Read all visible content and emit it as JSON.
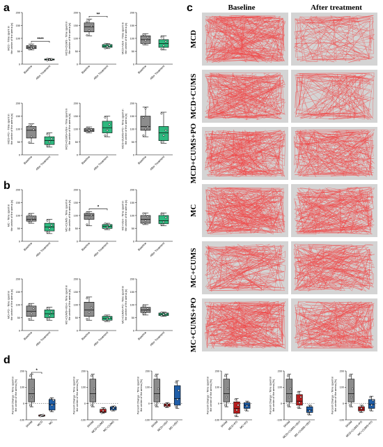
{
  "panel_letters": {
    "a": "a",
    "b": "b",
    "c": "c",
    "d": "d"
  },
  "tick_font_note": "",
  "colors": {
    "gray": "#8c8c8c",
    "green": "#2eb87f",
    "red": "#b81e1e",
    "blue": "#1f5ea8",
    "track_bg": "#d4d4d4",
    "track_line": "#f04646"
  },
  "tracking": {
    "column_headers": [
      "Baseline",
      "After treatment"
    ],
    "row_labels": [
      "MCD",
      "MCD+CUMS",
      "MCD+CUMS+PO",
      "MC",
      "MC+CUMS",
      "MC+CUMS+PO"
    ],
    "density": [
      [
        1.0,
        0.35
      ],
      [
        0.9,
        0.45
      ],
      [
        1.0,
        0.9
      ],
      [
        1.0,
        0.9
      ],
      [
        0.6,
        0.8
      ],
      [
        1.0,
        0.8
      ]
    ]
  },
  "chart_data": [
    {
      "type": "box",
      "panel": "a",
      "ylabel": "MCD - Time spent in\nthe center of the arena (s)",
      "categories": [
        "Baseline",
        "After Treatment"
      ],
      "ylim": [
        0,
        200
      ],
      "yticks": [
        0,
        50,
        100,
        150,
        200
      ],
      "boxes": [
        {
          "min": 55,
          "q1": 60,
          "median": 65,
          "q3": 72,
          "max": 78,
          "points": [
            58,
            62,
            66,
            70,
            76
          ],
          "color": "gray"
        },
        {
          "min": 14,
          "q1": 16,
          "median": 18,
          "q3": 20,
          "max": 22,
          "points": [
            15,
            17,
            19,
            21
          ],
          "color": "green"
        }
      ],
      "significance": "****"
    },
    {
      "type": "box",
      "panel": "a",
      "ylabel": "MCD+CUMS - Time spent in\nthe center of the arena (s)",
      "categories": [
        "Baseline",
        "After Treatment"
      ],
      "ylim": [
        0,
        200
      ],
      "yticks": [
        0,
        50,
        100,
        150,
        200
      ],
      "boxes": [
        {
          "min": 110,
          "q1": 125,
          "median": 145,
          "q3": 160,
          "max": 175,
          "points": [
            112,
            130,
            148,
            165,
            172
          ],
          "color": "gray"
        },
        {
          "min": 60,
          "q1": 65,
          "median": 70,
          "q3": 76,
          "max": 80,
          "points": [
            62,
            68,
            72,
            78
          ],
          "color": "green"
        }
      ],
      "significance": "**"
    },
    {
      "type": "box",
      "panel": "a",
      "ylabel": "MCD+VEH - Time spent in\nthe center of the arena (s)",
      "categories": [
        "Baseline",
        "After Treatment"
      ],
      "ylim": [
        0,
        200
      ],
      "yticks": [
        0,
        50,
        100,
        150,
        200
      ],
      "boxes": [
        {
          "min": 75,
          "q1": 80,
          "median": 95,
          "q3": 110,
          "max": 118,
          "points": [
            78,
            92,
            105,
            115
          ],
          "color": "gray"
        },
        {
          "min": 55,
          "q1": 65,
          "median": 80,
          "q3": 95,
          "max": 110,
          "points": [
            58,
            72,
            88,
            105
          ],
          "color": "green"
        }
      ],
      "significance": ""
    },
    {
      "type": "box",
      "panel": "a",
      "ylabel": "MCD+PO - Time spent in\nthe center of the arena (s)",
      "categories": [
        "Baseline",
        "After Treatment"
      ],
      "ylim": [
        0,
        200
      ],
      "yticks": [
        0,
        50,
        100,
        150,
        200
      ],
      "boxes": [
        {
          "min": 45,
          "q1": 65,
          "median": 95,
          "q3": 110,
          "max": 120,
          "points": [
            48,
            70,
            98,
            112,
            118
          ],
          "color": "gray"
        },
        {
          "min": 30,
          "q1": 40,
          "median": 55,
          "q3": 70,
          "max": 85,
          "points": [
            35,
            50,
            62,
            80
          ],
          "color": "green"
        }
      ],
      "significance": ""
    },
    {
      "type": "box",
      "panel": "a",
      "ylabel": "MCD+CUMS+VEH - Time spent in\nthe center of the arena (s)",
      "categories": [
        "Baseline",
        "After Treatment"
      ],
      "ylim": [
        0,
        200
      ],
      "yticks": [
        0,
        50,
        100,
        150,
        200
      ],
      "boxes": [
        {
          "min": 85,
          "q1": 90,
          "median": 95,
          "q3": 102,
          "max": 108,
          "points": [
            88,
            94,
            98,
            104
          ],
          "color": "gray"
        },
        {
          "min": 70,
          "q1": 85,
          "median": 105,
          "q3": 130,
          "max": 150,
          "points": [
            75,
            95,
            118,
            145
          ],
          "color": "green"
        }
      ],
      "significance": ""
    },
    {
      "type": "box",
      "panel": "a",
      "ylabel": "MCD+CUMS+PO - Time spent in\nthe center of the arena (s)",
      "categories": [
        "Baseline",
        "After Treatment"
      ],
      "ylim": [
        0,
        200
      ],
      "yticks": [
        0,
        50,
        100,
        150,
        200
      ],
      "boxes": [
        {
          "min": 70,
          "q1": 95,
          "median": 110,
          "q3": 150,
          "max": 185,
          "points": [
            75,
            100,
            108,
            145,
            180
          ],
          "color": "gray"
        },
        {
          "min": 45,
          "q1": 55,
          "median": 85,
          "q3": 110,
          "max": 165,
          "points": [
            50,
            75,
            95,
            160
          ],
          "color": "green"
        }
      ],
      "significance": ""
    },
    {
      "type": "box",
      "panel": "b",
      "ylabel": "MC - Time spent in\nthe center of the arena (s)",
      "categories": [
        "Baseline",
        "After Treatment"
      ],
      "ylim": [
        0,
        200
      ],
      "yticks": [
        0,
        50,
        100,
        150,
        200
      ],
      "boxes": [
        {
          "min": 70,
          "q1": 78,
          "median": 85,
          "q3": 98,
          "max": 108,
          "points": [
            74,
            82,
            90,
            104
          ],
          "color": "gray"
        },
        {
          "min": 30,
          "q1": 40,
          "median": 55,
          "q3": 70,
          "max": 85,
          "points": [
            35,
            50,
            62,
            80
          ],
          "color": "green"
        }
      ],
      "significance": ""
    },
    {
      "type": "box",
      "panel": "b",
      "ylabel": "MC+CUMS - Time spent in\nthe center of the arena (s)",
      "categories": [
        "Baseline",
        "After Treatment"
      ],
      "ylim": [
        0,
        200
      ],
      "yticks": [
        0,
        50,
        100,
        150,
        200
      ],
      "boxes": [
        {
          "min": 60,
          "q1": 85,
          "median": 100,
          "q3": 108,
          "max": 115,
          "points": [
            65,
            90,
            102,
            112
          ],
          "color": "gray"
        },
        {
          "min": 45,
          "q1": 50,
          "median": 58,
          "q3": 65,
          "max": 70,
          "points": [
            48,
            55,
            62,
            68
          ],
          "color": "green"
        }
      ],
      "significance": "*"
    },
    {
      "type": "box",
      "panel": "b",
      "ylabel": "MC+VEH - Time spent in\nthe center of the arena (s)",
      "categories": [
        "Baseline",
        "After Treatment"
      ],
      "ylim": [
        0,
        200
      ],
      "yticks": [
        0,
        50,
        100,
        150,
        200
      ],
      "boxes": [
        {
          "min": 65,
          "q1": 70,
          "median": 85,
          "q3": 100,
          "max": 110,
          "points": [
            68,
            80,
            95,
            108
          ],
          "color": "gray"
        },
        {
          "min": 60,
          "q1": 68,
          "median": 80,
          "q3": 100,
          "max": 110,
          "points": [
            64,
            75,
            92,
            106
          ],
          "color": "green"
        }
      ],
      "significance": ""
    },
    {
      "type": "box",
      "panel": "b",
      "ylabel": "MC+PO - Time spent in\nthe center of the arena (s)",
      "categories": [
        "Baseline",
        "After Treatment"
      ],
      "ylim": [
        0,
        200
      ],
      "yticks": [
        0,
        50,
        100,
        150,
        200
      ],
      "boxes": [
        {
          "min": 40,
          "q1": 55,
          "median": 75,
          "q3": 95,
          "max": 105,
          "points": [
            45,
            65,
            85,
            100
          ],
          "color": "gray"
        },
        {
          "min": 40,
          "q1": 50,
          "median": 65,
          "q3": 80,
          "max": 90,
          "points": [
            45,
            58,
            72,
            86
          ],
          "color": "green"
        }
      ],
      "significance": ""
    },
    {
      "type": "box",
      "panel": "b",
      "ylabel": "MC+CUMS+VEH - Time spent in\nthe center of the arena (s)",
      "categories": [
        "Baseline",
        "After Treatment"
      ],
      "ylim": [
        0,
        200
      ],
      "yticks": [
        0,
        50,
        100,
        150,
        200
      ],
      "boxes": [
        {
          "min": 40,
          "q1": 55,
          "median": 80,
          "q3": 110,
          "max": 130,
          "points": [
            45,
            70,
            90,
            125
          ],
          "color": "gray"
        },
        {
          "min": 35,
          "q1": 40,
          "median": 48,
          "q3": 55,
          "max": 60,
          "points": [
            38,
            45,
            50,
            58
          ],
          "color": "green"
        }
      ],
      "significance": ""
    },
    {
      "type": "box",
      "panel": "b",
      "ylabel": "MC+CUMS+PO - Time spent in\nthe center of the arena (s)",
      "categories": [
        "Baseline",
        "After Treatment"
      ],
      "ylim": [
        0,
        200
      ],
      "yticks": [
        0,
        50,
        100,
        150,
        200
      ],
      "boxes": [
        {
          "min": 60,
          "q1": 70,
          "median": 80,
          "q3": 90,
          "max": 100,
          "points": [
            65,
            75,
            85,
            95
          ],
          "color": "gray"
        },
        {
          "min": 55,
          "q1": 58,
          "median": 63,
          "q3": 68,
          "max": 72,
          "points": [
            57,
            62,
            66,
            70
          ],
          "color": "green"
        }
      ],
      "significance": ""
    },
    {
      "type": "box",
      "panel": "d",
      "ylabel": "Percent Change - Time spent in\nthe center of the arena (%)",
      "categories": [
        "SHAM",
        "MCD",
        "MC"
      ],
      "ylim": [
        -100,
        200
      ],
      "yticks": [
        -100,
        0,
        100,
        200
      ],
      "boxes": [
        {
          "min": -20,
          "q1": 10,
          "median": 60,
          "q3": 150,
          "max": 180,
          "points": [
            -10,
            40,
            90,
            170
          ],
          "color": "gray"
        },
        {
          "min": -80,
          "q1": -78,
          "median": -75,
          "q3": -70,
          "max": -68,
          "points": [
            -78,
            -73,
            -70
          ],
          "color": "red"
        },
        {
          "min": -50,
          "q1": -40,
          "median": -5,
          "q3": 25,
          "max": 35,
          "points": [
            -45,
            -10,
            20,
            30
          ],
          "color": "blue"
        }
      ],
      "significance": "*"
    },
    {
      "type": "box",
      "panel": "d",
      "ylabel": "Percent Change - Time spent in\nthe center of the arena (%)",
      "categories": [
        "SHAM",
        "MCD+CUMS",
        "MC+CUMS"
      ],
      "ylim": [
        -100,
        200
      ],
      "yticks": [
        -100,
        0,
        100,
        200
      ],
      "boxes": [
        {
          "min": -20,
          "q1": 10,
          "median": 60,
          "q3": 150,
          "max": 180,
          "points": [
            -10,
            40,
            90,
            170
          ],
          "color": "gray"
        },
        {
          "min": -60,
          "q1": -55,
          "median": -50,
          "q3": -35,
          "max": -25,
          "points": [
            -58,
            -45,
            -30
          ],
          "color": "red"
        },
        {
          "min": -45,
          "q1": -40,
          "median": -30,
          "q3": -20,
          "max": -15,
          "points": [
            -42,
            -28,
            -18
          ],
          "color": "blue"
        }
      ],
      "significance": ""
    },
    {
      "type": "box",
      "panel": "d",
      "ylabel": "Percent Change - Time spent in\nthe center of the arena (%)",
      "categories": [
        "SHAM",
        "MCD+VEH",
        "MC+VEH"
      ],
      "ylim": [
        -100,
        200
      ],
      "yticks": [
        -100,
        0,
        100,
        200
      ],
      "boxes": [
        {
          "min": -20,
          "q1": 10,
          "median": 60,
          "q3": 150,
          "max": 180,
          "points": [
            -10,
            40,
            90,
            170
          ],
          "color": "gray"
        },
        {
          "min": -25,
          "q1": -18,
          "median": -10,
          "q3": -2,
          "max": 5,
          "points": [
            -20,
            -8,
            2
          ],
          "color": "red"
        },
        {
          "min": -30,
          "q1": -10,
          "median": 30,
          "q3": 110,
          "max": 140,
          "points": [
            -20,
            25,
            80,
            130
          ],
          "color": "blue"
        }
      ],
      "significance": ""
    },
    {
      "type": "box",
      "panel": "d",
      "ylabel": "Percent Change - Time spent in\nthe center of the arena (%)",
      "categories": [
        "SHAM",
        "MCD+PO",
        "MC+PO"
      ],
      "ylim": [
        -100,
        200
      ],
      "yticks": [
        -100,
        0,
        100,
        200
      ],
      "boxes": [
        {
          "min": -20,
          "q1": 10,
          "median": 60,
          "q3": 150,
          "max": 180,
          "points": [
            -10,
            40,
            90,
            170
          ],
          "color": "gray"
        },
        {
          "min": -80,
          "q1": -60,
          "median": -30,
          "q3": 10,
          "max": 30,
          "points": [
            -75,
            -40,
            -10,
            25
          ],
          "color": "red"
        },
        {
          "min": -45,
          "q1": -30,
          "median": -10,
          "q3": 5,
          "max": 15,
          "points": [
            -40,
            -15,
            10
          ],
          "color": "blue"
        }
      ],
      "significance": ""
    },
    {
      "type": "box",
      "panel": "d",
      "ylabel": "Percent Change - Time spent in\nthe center of the arena (%)",
      "categories": [
        "SHAM",
        "MCD+CUMS+VEH",
        "MC+CUMS+VEH"
      ],
      "ylim": [
        -100,
        200
      ],
      "yticks": [
        -100,
        0,
        100,
        200
      ],
      "boxes": [
        {
          "min": -20,
          "q1": 10,
          "median": 60,
          "q3": 150,
          "max": 180,
          "points": [
            -10,
            40,
            90,
            170
          ],
          "color": "gray"
        },
        {
          "min": -30,
          "q1": -10,
          "median": 15,
          "q3": 55,
          "max": 75,
          "points": [
            -25,
            5,
            40,
            70
          ],
          "color": "red"
        },
        {
          "min": -70,
          "q1": -55,
          "median": -40,
          "q3": -20,
          "max": -10,
          "points": [
            -65,
            -45,
            -15
          ],
          "color": "blue"
        }
      ],
      "significance": ""
    },
    {
      "type": "box",
      "panel": "d",
      "ylabel": "Percent Change - Time spent in\nthe center of the arena (%)",
      "categories": [
        "SHAM",
        "MCD+CUMS+PO",
        "MC+CUMS+PO"
      ],
      "ylim": [
        -100,
        200
      ],
      "yticks": [
        -100,
        0,
        100,
        200
      ],
      "boxes": [
        {
          "min": -20,
          "q1": 10,
          "median": 60,
          "q3": 150,
          "max": 180,
          "points": [
            -10,
            40,
            90,
            170
          ],
          "color": "gray"
        },
        {
          "min": -55,
          "q1": -45,
          "median": -35,
          "q3": -20,
          "max": -10,
          "points": [
            -50,
            -30,
            -15
          ],
          "color": "red"
        },
        {
          "min": -45,
          "q1": -30,
          "median": -5,
          "q3": 25,
          "max": 45,
          "points": [
            -40,
            -10,
            20,
            40
          ],
          "color": "blue"
        }
      ],
      "significance": ""
    }
  ]
}
